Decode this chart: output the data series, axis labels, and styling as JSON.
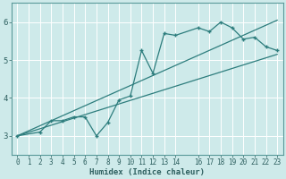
{
  "xlabel": "Humidex (Indice chaleur)",
  "ylabel": "",
  "bg_color": "#ceeaea",
  "grid_color": "#ffffff",
  "line_color": "#2d7d7d",
  "xlim": [
    -0.5,
    23.5
  ],
  "ylim": [
    2.5,
    6.5
  ],
  "xticks": [
    0,
    1,
    2,
    3,
    4,
    5,
    6,
    7,
    8,
    9,
    10,
    11,
    12,
    13,
    14,
    16,
    17,
    18,
    19,
    20,
    21,
    22,
    23
  ],
  "yticks": [
    3,
    4,
    5,
    6
  ],
  "zigzag_x": [
    0,
    2,
    3,
    4,
    5,
    6,
    7,
    8,
    9,
    10,
    11,
    12,
    13,
    14,
    16,
    17,
    18,
    19,
    20,
    21,
    22,
    23
  ],
  "zigzag_y": [
    3.0,
    3.1,
    3.4,
    3.4,
    3.5,
    3.5,
    3.0,
    3.35,
    3.95,
    4.05,
    5.25,
    4.65,
    5.7,
    5.65,
    5.85,
    5.75,
    6.0,
    5.85,
    5.55,
    5.6,
    5.35,
    5.25
  ],
  "line1_x": [
    0,
    23
  ],
  "line1_y": [
    3.0,
    5.15
  ],
  "line2_x": [
    0,
    23
  ],
  "line2_y": [
    3.0,
    6.05
  ]
}
